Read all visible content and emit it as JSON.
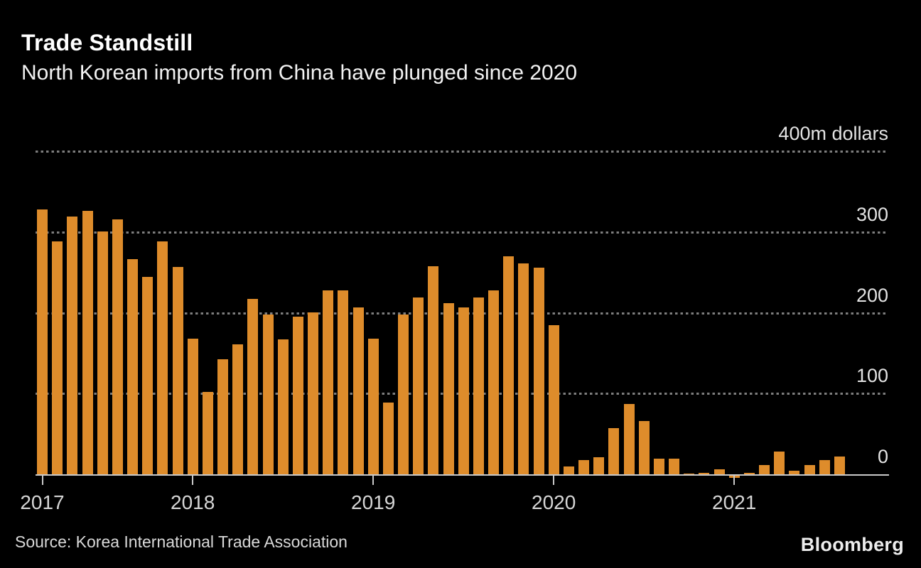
{
  "header": {
    "title": "Trade Standstill",
    "subtitle": "North Korean imports from China have plunged since 2020"
  },
  "footer": {
    "source": "Source: Korea International Trade Association",
    "brand": "Bloomberg"
  },
  "colors": {
    "background": "#000000",
    "bar": "#de8c2b",
    "gridline": "#7d7d7d",
    "axis": "#c9c9c9",
    "title_text": "#ffffff",
    "label_text": "#d6d6d6"
  },
  "chart_data": {
    "type": "bar",
    "title": "Trade Standstill",
    "subtitle": "North Korean imports from China have plunged since 2020",
    "ylabel": "m dollars",
    "ylim": [
      0,
      400
    ],
    "grid": "horizontal-dotted",
    "legend": "none",
    "y_ticks": [
      {
        "value": 400,
        "label": "400m dollars"
      },
      {
        "value": 300,
        "label": "300"
      },
      {
        "value": 200,
        "label": "200"
      },
      {
        "value": 100,
        "label": "100"
      },
      {
        "value": 0,
        "label": "0"
      }
    ],
    "x_tick_labels": [
      "2017",
      "2018",
      "2019",
      "2020",
      "2021"
    ],
    "x_tick_month_indices": [
      0,
      10,
      22,
      34,
      46
    ],
    "months": [
      "2017-03",
      "2017-04",
      "2017-05",
      "2017-06",
      "2017-07",
      "2017-08",
      "2017-09",
      "2017-10",
      "2017-11",
      "2017-12",
      "2018-01",
      "2018-02",
      "2018-03",
      "2018-04",
      "2018-05",
      "2018-06",
      "2018-07",
      "2018-08",
      "2018-09",
      "2018-10",
      "2018-11",
      "2018-12",
      "2019-01",
      "2019-02",
      "2019-03",
      "2019-04",
      "2019-05",
      "2019-06",
      "2019-07",
      "2019-08",
      "2019-09",
      "2019-10",
      "2019-11",
      "2019-12",
      "2020-01",
      "2020-02",
      "2020-03",
      "2020-04",
      "2020-05",
      "2020-06",
      "2020-07",
      "2020-08",
      "2020-09",
      "2020-10",
      "2020-11",
      "2020-12",
      "2021-01",
      "2021-02",
      "2021-03",
      "2021-04",
      "2021-05",
      "2021-06",
      "2021-07",
      "2021-08"
    ],
    "values": [
      328,
      288,
      319,
      326,
      301,
      316,
      266,
      244,
      288,
      257,
      168,
      102,
      142,
      161,
      217,
      198,
      167,
      195,
      200,
      228,
      228,
      207,
      168,
      89,
      198,
      219,
      258,
      212,
      207,
      219,
      228,
      270,
      261,
      256,
      185,
      10,
      18,
      21,
      57,
      87,
      66,
      19,
      19,
      1,
      2,
      6,
      -3,
      2,
      11,
      28,
      4,
      11,
      18,
      22
    ],
    "source": "Korea International Trade Association"
  }
}
